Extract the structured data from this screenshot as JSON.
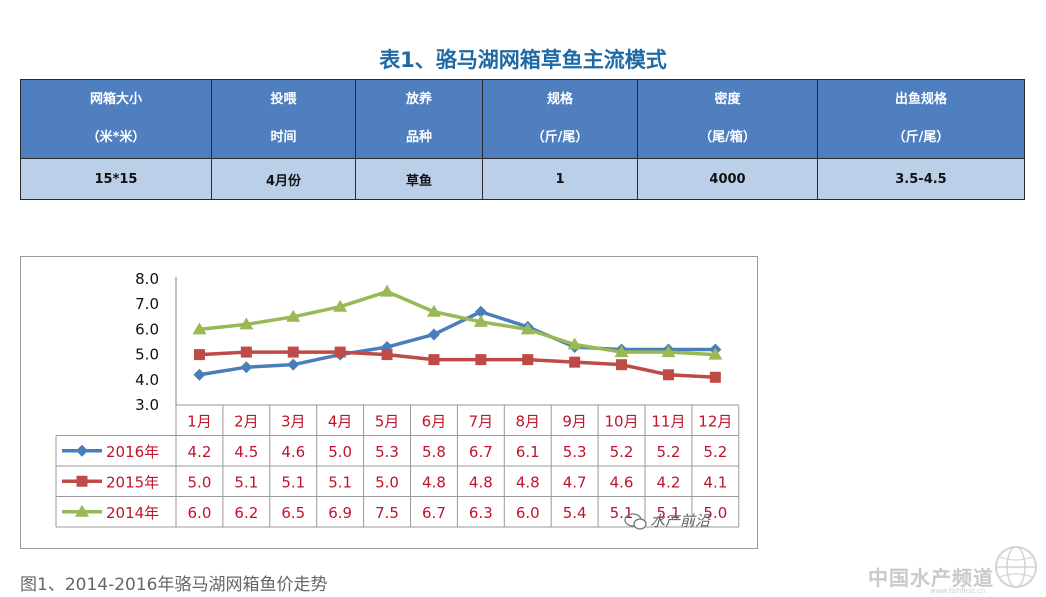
{
  "page": {
    "title": "表1、骆马湖网箱草鱼主流模式",
    "caption": "图1、2014-2016年骆马湖网箱鱼价走势",
    "watermark": "中国水产频道",
    "watermark_url": "www.fishfirst.cn",
    "chart_watermark": "水产前沿"
  },
  "table": {
    "headers": [
      [
        "网箱大小",
        "（米*米）"
      ],
      [
        "投喂",
        "时间"
      ],
      [
        "放养",
        "品种"
      ],
      [
        "规格",
        "（斤/尾）"
      ],
      [
        "密度",
        "（尾/箱）"
      ],
      [
        "出鱼规格",
        "（斤/尾）"
      ]
    ],
    "rows": [
      [
        "15*15",
        "4月份",
        "草鱼",
        "1",
        "4000",
        "3.5-4.5"
      ]
    ],
    "header_color": "#4f7fbf",
    "row_color": "#bccfe8"
  },
  "chart_data": {
    "type": "line",
    "categories": [
      "1月",
      "2月",
      "3月",
      "4月",
      "5月",
      "6月",
      "7月",
      "8月",
      "9月",
      "10月",
      "11月",
      "12月"
    ],
    "series": [
      {
        "name": "2016年",
        "values": [
          4.2,
          4.5,
          4.6,
          5.0,
          5.3,
          5.8,
          6.7,
          6.1,
          5.3,
          5.2,
          5.2,
          5.2
        ],
        "color": "#4a7ebb",
        "marker": "diamond"
      },
      {
        "name": "2015年",
        "values": [
          5.0,
          5.1,
          5.1,
          5.1,
          5.0,
          4.8,
          4.8,
          4.8,
          4.7,
          4.6,
          4.2,
          4.1
        ],
        "color": "#be4b48",
        "marker": "square"
      },
      {
        "name": "2014年",
        "values": [
          6.0,
          6.2,
          6.5,
          6.9,
          7.5,
          6.7,
          6.3,
          6.0,
          5.4,
          5.1,
          5.1,
          5.0
        ],
        "color": "#98b954",
        "marker": "triangle"
      }
    ],
    "yticks": [
      "8.0",
      "7.0",
      "6.0",
      "5.0",
      "4.0",
      "3.0"
    ],
    "ylim": [
      3.0,
      8.0
    ],
    "data_table": true,
    "label_color": "#c0142b"
  }
}
